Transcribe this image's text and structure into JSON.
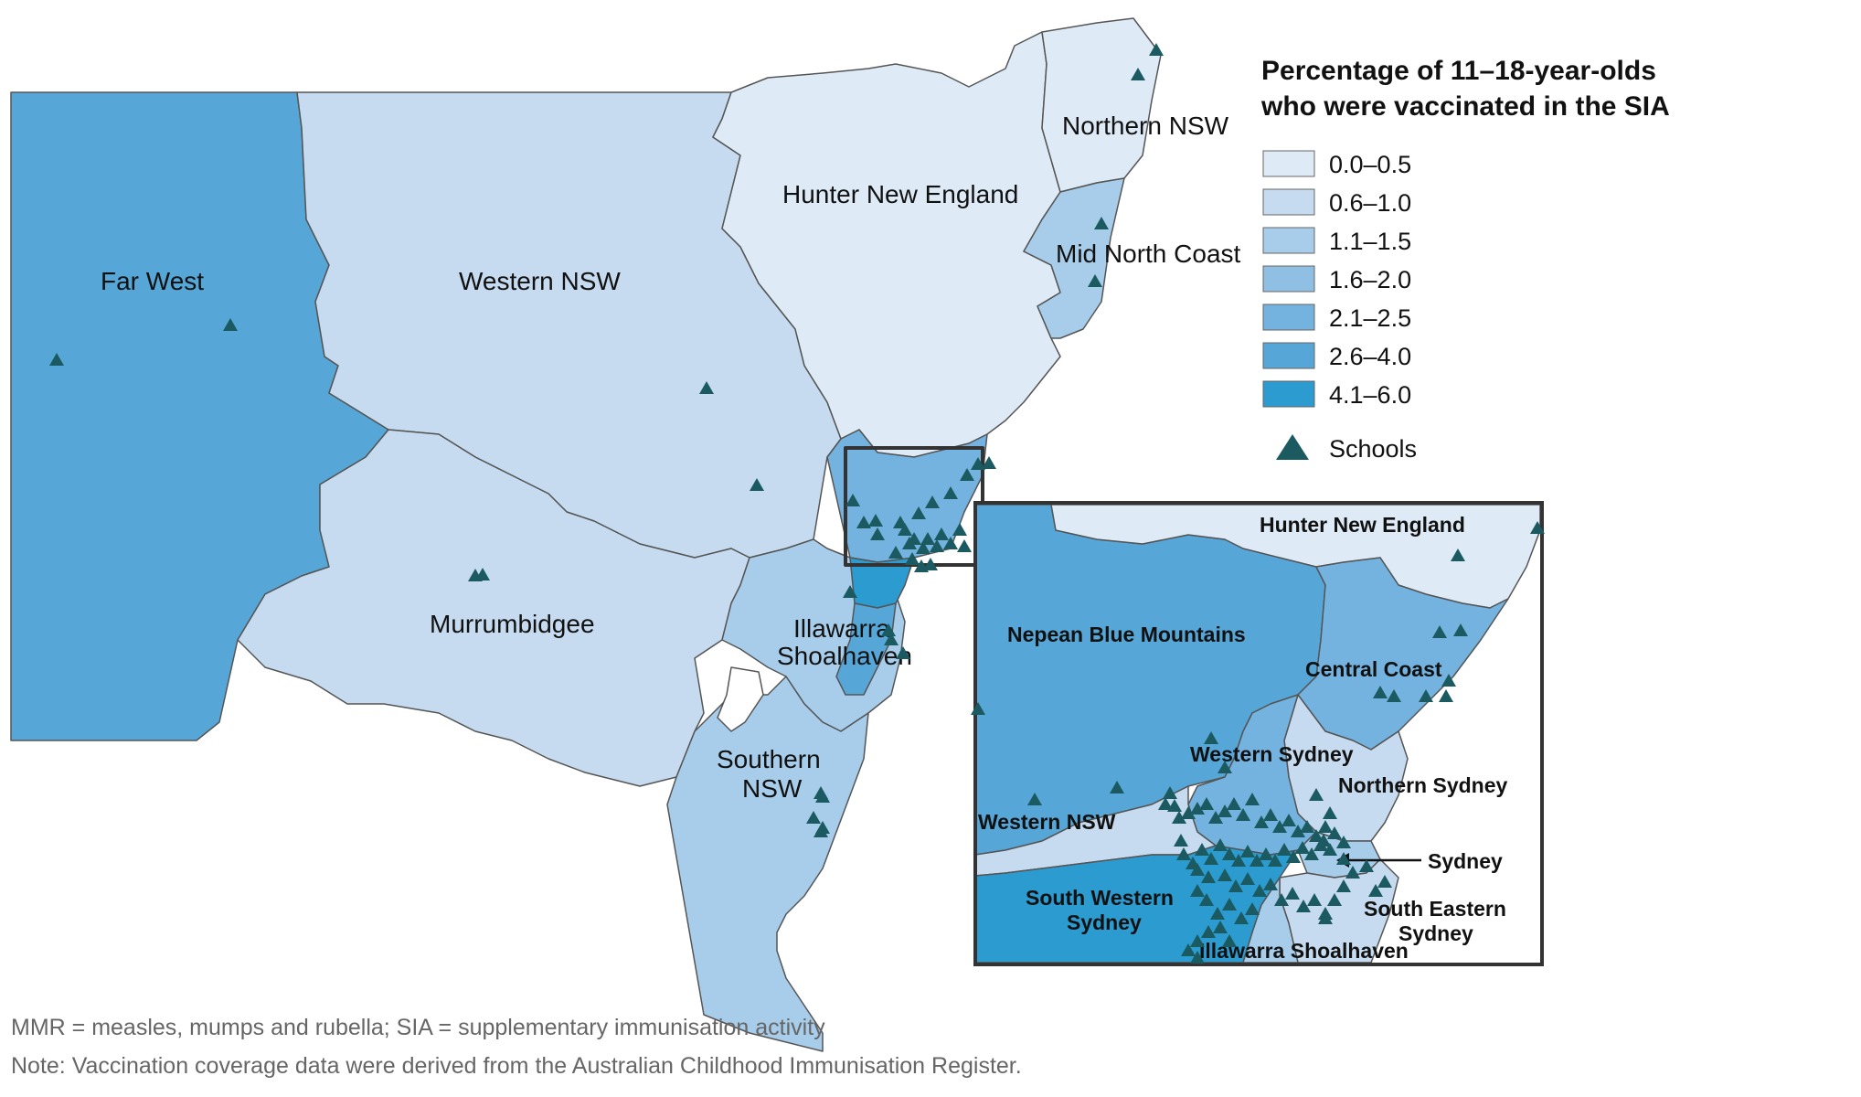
{
  "legend": {
    "title_line1": "Percentage of 11–18-year-olds",
    "title_line2": "who were vaccinated in the SIA",
    "classes": [
      {
        "label": "0.0–0.5",
        "color": "#deebf7"
      },
      {
        "label": "0.6–1.0",
        "color": "#c6dbef"
      },
      {
        "label": "1.1–1.5",
        "color": "#a8cdea"
      },
      {
        "label": "1.6–2.0",
        "color": "#8fc0e4"
      },
      {
        "label": "2.1–2.5",
        "color": "#74b3df"
      },
      {
        "label": "2.6–4.0",
        "color": "#56a7d8"
      },
      {
        "label": "4.1–6.0",
        "color": "#2b9bd0"
      }
    ],
    "schools_label": "Schools",
    "school_color": "#1b5a60"
  },
  "regions": {
    "far_west": "Far West",
    "western_nsw": "Western NSW",
    "hunter_new_england": "Hunter New England",
    "northern_nsw": "Northern NSW",
    "mid_north_coast": "Mid North Coast",
    "murrumbidgee": "Murrumbidgee",
    "illawarra_l1": "Illawarra",
    "illawarra_l2": "Shoalhaven",
    "southern_l1": "Southern",
    "southern_l2": "NSW"
  },
  "inset": {
    "hunter_new_england": "Hunter New England",
    "nepean_blue_mountains": "Nepean Blue Mountains",
    "central_coast": "Central Coast",
    "western_sydney": "Western Sydney",
    "northern_sydney": "Northern Sydney",
    "western_nsw": "Western NSW",
    "sydney": "Sydney",
    "south_western_l1": "South Western",
    "south_western_l2": "Sydney",
    "south_eastern_l1": "South Eastern",
    "south_eastern_l2": "Sydney",
    "illawarra_shoalhaven": "Illawarra Shoalhaven"
  },
  "footnotes": {
    "line1": "MMR = measles, mumps and rubella; SIA = supplementary immunisation activity",
    "line2": "Note:  Vaccination coverage data were derived from the Australian Childhood Immunisation Register."
  }
}
